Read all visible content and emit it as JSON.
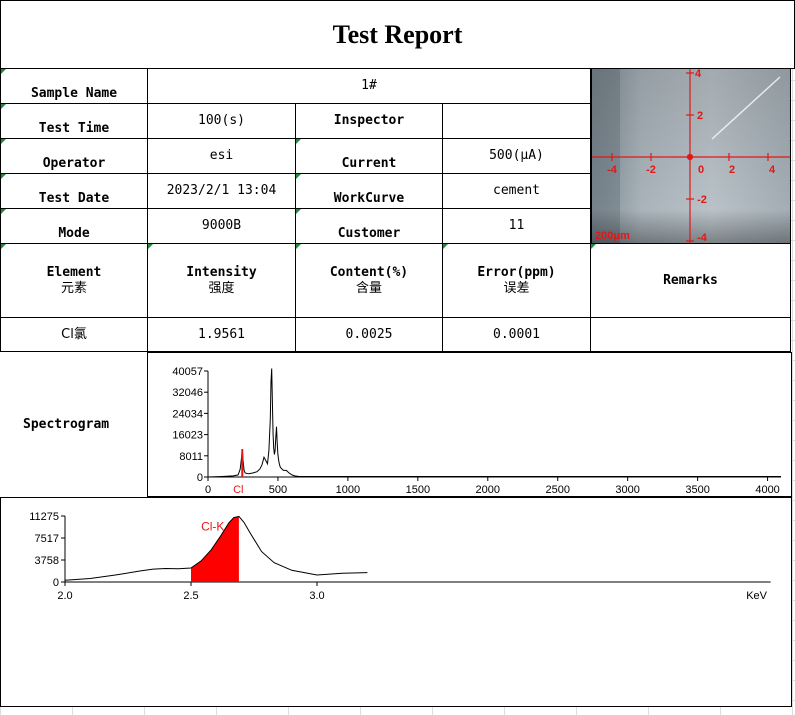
{
  "title": "Test Report",
  "info": {
    "sample_name_label": "Sample Name",
    "sample_name_value": "1#",
    "test_time_label": "Test Time",
    "test_time_value": "100(s)",
    "inspector_label": "Inspector",
    "inspector_value": "",
    "operator_label": "Operator",
    "operator_value": "esi",
    "current_label": "Current",
    "current_value": "500(μA)",
    "test_date_label": "Test Date",
    "test_date_value": "2023/2/1 13:04",
    "workcurve_label": "WorkCurve",
    "workcurve_value": "cement",
    "mode_label": "Mode",
    "mode_value": "9000B",
    "customer_label": "Customer",
    "customer_value": "11"
  },
  "results": {
    "headers": [
      {
        "en": "Element",
        "cn": "元素"
      },
      {
        "en": "Intensity",
        "cn": "强度"
      },
      {
        "en": "Content(%)",
        "cn": "含量"
      },
      {
        "en": "Error(ppm)",
        "cn": "误差"
      },
      {
        "en": "Remarks",
        "cn": ""
      }
    ],
    "rows": [
      [
        "Cl氯",
        "1.9561",
        "0.0025",
        "0.0001",
        ""
      ]
    ]
  },
  "spectrogram_label": "Spectrogram",
  "camera": {
    "scale_label": "200μm",
    "x_ticks": [
      "-4",
      "-2",
      "0",
      "2",
      "4"
    ],
    "y_ticks": [
      "4",
      "2",
      "-2",
      "-4"
    ],
    "crosshair_color": "#e01818"
  },
  "chart_data": [
    {
      "type": "line",
      "title": "",
      "xlabel": "",
      "ylabel": "",
      "xlim": [
        0,
        4096
      ],
      "ylim": [
        0,
        40057
      ],
      "x_ticks": [
        "0",
        "500",
        "1000",
        "1500",
        "2000",
        "2500",
        "3000",
        "3500",
        "4000"
      ],
      "x_tick_values": [
        0,
        500,
        1000,
        1500,
        2000,
        2500,
        3000,
        3500,
        4000
      ],
      "y_ticks": [
        "0",
        "8011",
        "16023",
        "24034",
        "32046",
        "40057"
      ],
      "y_tick_values": [
        0,
        8011,
        16023,
        24034,
        32046,
        40057
      ],
      "marker": {
        "label": "Cl",
        "x": 245,
        "color": "#e01818"
      },
      "series": [
        {
          "color": "#000000",
          "x": [
            0,
            100,
            180,
            215,
            230,
            240,
            245,
            250,
            258,
            265,
            290,
            320,
            350,
            370,
            385,
            400,
            415,
            425,
            435,
            445,
            450,
            455,
            460,
            465,
            470,
            475,
            480,
            485,
            490,
            495,
            500,
            505,
            510,
            515,
            520,
            530,
            540,
            560,
            580,
            600,
            620,
            650,
            4096
          ],
          "y": [
            0,
            200,
            400,
            800,
            3000,
            7500,
            10500,
            6500,
            2500,
            1500,
            1200,
            1500,
            2000,
            3000,
            4500,
            7500,
            6000,
            5000,
            10000,
            22000,
            36000,
            41000,
            28000,
            16000,
            11000,
            8500,
            10000,
            15000,
            19000,
            13000,
            8500,
            6500,
            5000,
            4000,
            3500,
            3000,
            2500,
            2500,
            1500,
            800,
            400,
            200,
            200
          ]
        }
      ]
    },
    {
      "type": "area",
      "title": "",
      "xlabel": "KeV",
      "ylabel": "",
      "xlim": [
        2.0,
        4.8
      ],
      "ylim": [
        0,
        11275
      ],
      "x_ticks": [
        "2.0",
        "2.5",
        "3.0"
      ],
      "x_tick_values": [
        2.0,
        2.5,
        3.0
      ],
      "y_ticks": [
        "0",
        "3758",
        "7517",
        "11275"
      ],
      "y_tick_values": [
        0,
        3758,
        7517,
        11275
      ],
      "annotation": {
        "label": "Cl-K",
        "color": "#e01818"
      },
      "highlight_range": [
        2.5,
        2.69
      ],
      "series": [
        {
          "color": "#000000",
          "x": [
            2.0,
            2.1,
            2.2,
            2.3,
            2.35,
            2.4,
            2.45,
            2.5,
            2.54,
            2.58,
            2.62,
            2.65,
            2.67,
            2.69,
            2.71,
            2.74,
            2.78,
            2.83,
            2.9,
            3.0,
            3.1,
            3.2
          ],
          "y": [
            300,
            600,
            1200,
            1900,
            2200,
            2300,
            2250,
            2400,
            3600,
            5500,
            8000,
            10100,
            11000,
            11200,
            10200,
            8000,
            5200,
            3300,
            2000,
            1200,
            1500,
            1600
          ]
        }
      ]
    }
  ]
}
